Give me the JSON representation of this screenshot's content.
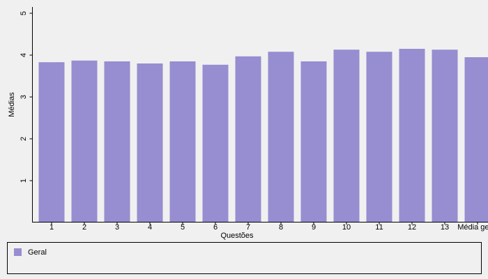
{
  "chart_data": {
    "type": "bar",
    "x_label": "Questões",
    "y_label": "Médias",
    "categories": [
      "1",
      "2",
      "3",
      "4",
      "5",
      "6",
      "7",
      "8",
      "9",
      "10",
      "11",
      "12",
      "13",
      "Média geral"
    ],
    "series": [
      {
        "name": "Geral",
        "color": "#968ed0",
        "values": [
          3.83,
          3.87,
          3.85,
          3.8,
          3.85,
          3.77,
          3.97,
          4.08,
          3.85,
          4.13,
          4.08,
          4.15,
          4.13,
          3.95
        ]
      }
    ],
    "ylim": [
      0,
      5.15
    ],
    "yticks": [
      1,
      2,
      3,
      4,
      5
    ],
    "grid": false
  }
}
